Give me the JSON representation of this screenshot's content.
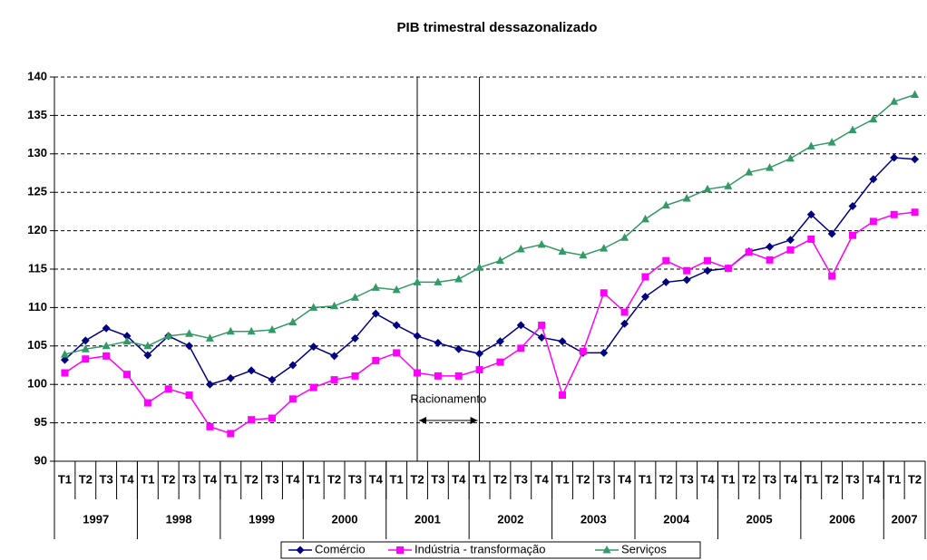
{
  "chart_data": {
    "type": "line",
    "title": "PIB trimestral dessazonalizado",
    "categories": [
      "T1",
      "T2",
      "T3",
      "T4",
      "T1",
      "T2",
      "T3",
      "T4",
      "T1",
      "T2",
      "T3",
      "T4",
      "T1",
      "T2",
      "T3",
      "T4",
      "T1",
      "T2",
      "T3",
      "T4",
      "T1",
      "T2",
      "T3",
      "T4",
      "T1",
      "T2",
      "T3",
      "T4",
      "T1",
      "T2",
      "T3",
      "T4",
      "T1",
      "T2",
      "T3",
      "T4",
      "T1",
      "T2",
      "T3",
      "T4",
      "T1",
      "T2"
    ],
    "years": [
      "1997",
      "1998",
      "1999",
      "2000",
      "2001",
      "2002",
      "2003",
      "2004",
      "2005",
      "2006",
      "2007"
    ],
    "series": [
      {
        "name": "Comércio",
        "color": "#000080",
        "marker": "diamond",
        "values": [
          103.2,
          105.7,
          107.3,
          106.3,
          103.8,
          106.3,
          105.0,
          100.0,
          100.8,
          101.8,
          100.6,
          102.5,
          104.9,
          103.7,
          106.0,
          109.2,
          107.7,
          106.3,
          105.4,
          104.6,
          104.0,
          105.6,
          107.7,
          106.1,
          105.6,
          104.1,
          104.1,
          107.9,
          111.4,
          113.3,
          113.6,
          114.8,
          115.1,
          117.3,
          117.9,
          118.8,
          122.1,
          119.6,
          123.2,
          126.7,
          129.5,
          129.3
        ]
      },
      {
        "name": "Indústria - transformação",
        "color": "#ff00ff",
        "marker": "square",
        "values": [
          101.5,
          103.3,
          103.7,
          101.3,
          97.6,
          99.4,
          98.6,
          94.5,
          93.6,
          95.4,
          95.6,
          98.1,
          99.6,
          100.6,
          101.1,
          103.1,
          104.1,
          101.5,
          101.1,
          101.1,
          101.9,
          102.9,
          104.7,
          107.7,
          98.6,
          104.3,
          111.9,
          109.4,
          114.0,
          116.1,
          114.8,
          116.1,
          115.1,
          117.2,
          116.2,
          117.5,
          118.9,
          114.1,
          119.4,
          121.2,
          122.1,
          122.4
        ]
      },
      {
        "name": "Serviços",
        "color": "#339966",
        "marker": "triangle",
        "values": [
          103.9,
          104.6,
          105.0,
          105.6,
          105.0,
          106.3,
          106.6,
          106.0,
          106.9,
          106.9,
          107.1,
          108.1,
          110.0,
          110.2,
          111.3,
          112.6,
          112.3,
          113.3,
          113.3,
          113.7,
          115.2,
          116.1,
          117.6,
          118.2,
          117.3,
          116.8,
          117.7,
          119.1,
          121.5,
          123.3,
          124.2,
          125.4,
          125.8,
          127.6,
          128.2,
          129.4,
          131.0,
          131.5,
          133.1,
          134.5,
          136.8,
          137.7
        ]
      }
    ],
    "annotation": {
      "text": "Racionamento",
      "x": [
        17,
        20
      ]
    },
    "ylim": [
      90,
      140
    ],
    "yticks": [
      90,
      95,
      100,
      105,
      110,
      115,
      120,
      125,
      130,
      135,
      140
    ],
    "grid": true,
    "legend": "bottom"
  }
}
